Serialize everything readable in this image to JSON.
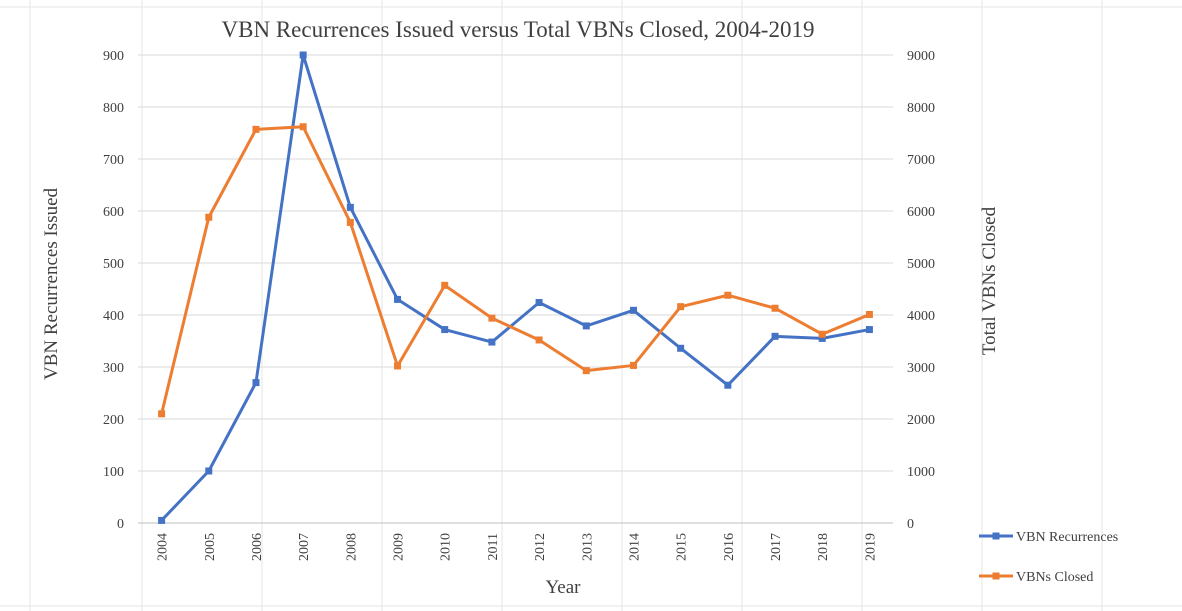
{
  "chart_data": {
    "type": "line",
    "title": "VBN Recurrences Issued versus Total VBNs Closed, 2004-2019",
    "xlabel": "Year",
    "ylabel_left": "VBN Recurrences Issued",
    "ylabel_right": "Total VBNs Closed",
    "categories": [
      "2004",
      "2005",
      "2006",
      "2007",
      "2008",
      "2009",
      "2010",
      "2011",
      "2012",
      "2013",
      "2014",
      "2015",
      "2016",
      "2017",
      "2018",
      "2019"
    ],
    "y_left_ticks": [
      "0",
      "100",
      "200",
      "300",
      "400",
      "500",
      "600",
      "700",
      "800",
      "900"
    ],
    "y_right_ticks": [
      "0",
      "1000",
      "2000",
      "3000",
      "4000",
      "5000",
      "6000",
      "7000",
      "8000",
      "9000"
    ],
    "ylim_left": [
      0,
      900
    ],
    "ylim_right": [
      0,
      9000
    ],
    "grid": true,
    "legend_position": "bottom-right",
    "series": [
      {
        "name": "VBN Recurrences",
        "axis": "left",
        "color": "#4472c4",
        "values": [
          5,
          100,
          270,
          900,
          607,
          430,
          372,
          348,
          424,
          379,
          409,
          336,
          265,
          359,
          355,
          372
        ]
      },
      {
        "name": "VBNs Closed",
        "axis": "right",
        "color": "#ed7d31",
        "values": [
          2100,
          5880,
          7570,
          7620,
          5780,
          3020,
          4570,
          3940,
          3520,
          2930,
          3030,
          4160,
          4380,
          4130,
          3630,
          4010
        ]
      }
    ]
  }
}
